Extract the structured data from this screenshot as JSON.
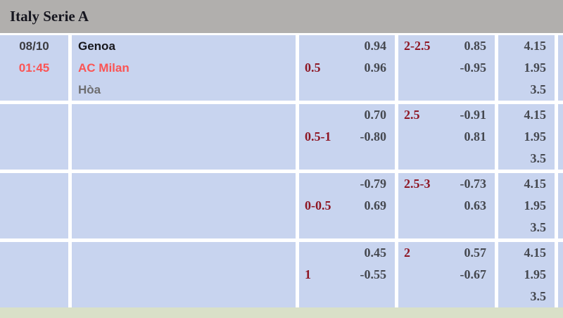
{
  "league_header": {
    "title": "Italy Serie A"
  },
  "match": {
    "date": "08/10",
    "time": "01:45",
    "home_team": "Genoa",
    "away_team": "AC Milan",
    "draw_label": "Hòa"
  },
  "rows": [
    {
      "date": "08/10",
      "time": "01:45",
      "home": "Genoa",
      "away": "AC Milan",
      "draw": "Hòa",
      "handicap": {
        "line": "0.5",
        "top": "0.94",
        "bottom": "0.96"
      },
      "over_under": {
        "line": "2-2.5",
        "top": "0.85",
        "bottom": "-0.95"
      },
      "one_x_two": {
        "top": "4.15",
        "middle": "1.95",
        "bottom": "3.5"
      }
    },
    {
      "handicap": {
        "line": "0.5-1",
        "top": "0.70",
        "bottom": "-0.80"
      },
      "over_under": {
        "line": "2.5",
        "top": "-0.91",
        "bottom": "0.81"
      },
      "one_x_two": {
        "top": "4.15",
        "middle": "1.95",
        "bottom": "3.5"
      }
    },
    {
      "handicap": {
        "line": "0-0.5",
        "top": "-0.79",
        "bottom": "0.69"
      },
      "over_under": {
        "line": "2.5-3",
        "top": "-0.73",
        "bottom": "0.63"
      },
      "one_x_two": {
        "top": "4.15",
        "middle": "1.95",
        "bottom": "3.5"
      }
    },
    {
      "handicap": {
        "line": "1",
        "top": "0.45",
        "bottom": "-0.55"
      },
      "over_under": {
        "line": "2",
        "top": "0.57",
        "bottom": "-0.67"
      },
      "one_x_two": {
        "top": "4.15",
        "middle": "1.95",
        "bottom": "3.5"
      }
    }
  ],
  "colors": {
    "header_bg": "#b1afad",
    "cell_bg": "#c8d4ef",
    "accent_red": "#fb5454",
    "handicap_line_red": "#8e1724",
    "odds_text": "#45484f",
    "footer_bg": "#d9e0c8"
  }
}
